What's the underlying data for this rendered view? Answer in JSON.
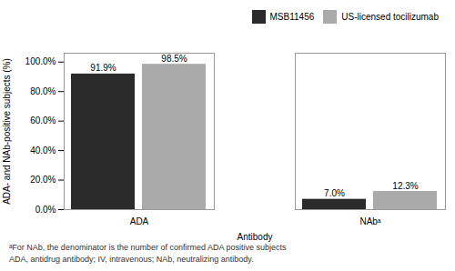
{
  "chart_data": {
    "type": "bar",
    "categories": [
      "ADA",
      "NAbᵃ"
    ],
    "series": [
      {
        "name": "MSB11456",
        "color": "#2b2b2b",
        "values": [
          91.9,
          7.0
        ],
        "value_labels": [
          "91.9%",
          "7.0%"
        ]
      },
      {
        "name": "US-licensed tocilizumab",
        "color": "#aaaaaa",
        "values": [
          98.5,
          12.3
        ],
        "value_labels": [
          "98.5%",
          "12.3%"
        ]
      }
    ],
    "ylabel": "ADA- and NAb-positive subjects (%)",
    "xlabel": "Antibody",
    "ylim": [
      0,
      106
    ],
    "yticks": [
      {
        "value": 0,
        "label": "0.0%"
      },
      {
        "value": 20,
        "label": "20.0%"
      },
      {
        "value": 40,
        "label": "40.0%"
      },
      {
        "value": 60,
        "label": "60.0%"
      },
      {
        "value": 80,
        "label": "80.0%"
      },
      {
        "value": 100,
        "label": "100.0%"
      }
    ],
    "annotations": [
      "ᵃFor NAb, the denominator is the number of confirmed ADA positive subjects",
      "ADA, antidrug antibody; IV, intravenous; NAb, neutralizing antibody."
    ],
    "legend": "upper right",
    "data_labels": true,
    "grid": false
  }
}
